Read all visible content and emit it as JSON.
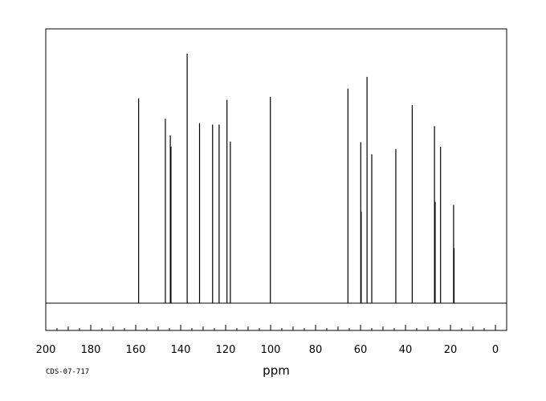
{
  "chart_data": {
    "type": "line",
    "title": "",
    "xlabel": "ppm",
    "ylabel": "",
    "x_reversed": true,
    "xlim": [
      200,
      -5
    ],
    "ylim": [
      0,
      100
    ],
    "grid": false,
    "x_ticks": [
      200,
      180,
      160,
      140,
      120,
      100,
      80,
      60,
      40,
      20,
      0
    ],
    "x_tick_labels": [
      "200",
      "180",
      "160",
      "140",
      "120",
      "100",
      "80",
      "60",
      "40",
      "20",
      "0"
    ],
    "series": [
      {
        "values": [
          {
            "x": 158.7,
            "y": 82.1
          },
          {
            "x": 146.8,
            "y": 73.9
          },
          {
            "x": 144.6,
            "y": 67.2
          },
          {
            "x": 144.3,
            "y": 62.7
          },
          {
            "x": 137.1,
            "y": 100.0
          },
          {
            "x": 131.6,
            "y": 72.2
          },
          {
            "x": 125.8,
            "y": 71.6
          },
          {
            "x": 122.9,
            "y": 71.6
          },
          {
            "x": 119.4,
            "y": 81.5
          },
          {
            "x": 117.9,
            "y": 64.8
          },
          {
            "x": 100.1,
            "y": 82.7
          },
          {
            "x": 65.6,
            "y": 86.0
          },
          {
            "x": 59.9,
            "y": 64.5
          },
          {
            "x": 59.7,
            "y": 36.7
          },
          {
            "x": 57.1,
            "y": 90.7
          },
          {
            "x": 55.0,
            "y": 59.7
          },
          {
            "x": 44.3,
            "y": 61.8
          },
          {
            "x": 37.0,
            "y": 79.4
          },
          {
            "x": 27.1,
            "y": 71.0
          },
          {
            "x": 26.8,
            "y": 40.6
          },
          {
            "x": 24.4,
            "y": 62.7
          },
          {
            "x": 18.6,
            "y": 39.4
          },
          {
            "x": 18.4,
            "y": 22.1
          }
        ]
      }
    ]
  },
  "footer": {
    "code": "CDS-07-717"
  }
}
